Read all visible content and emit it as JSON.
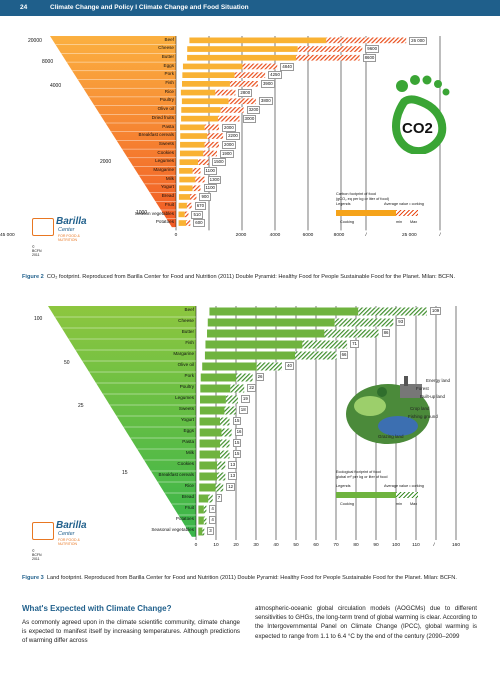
{
  "header": {
    "page_number": "24",
    "title": "Climate Change and Policy I Climate Change and Food Situation"
  },
  "figure2": {
    "caption_label": "Figure 2",
    "caption_text": "CO₂ footprint. Reproduced from Barilla Center for Food and Nutrition (2011) Double Pyramid: Healthy Food for People Sustainable Food for the Planet. Milan: BCFN.",
    "scale_marks": [
      "20000",
      "8000",
      "4000",
      "2000",
      "1000"
    ],
    "ticks": [
      "0",
      "2000",
      "4000",
      "6000",
      "8000",
      "/",
      "25 000",
      "/",
      "45 000"
    ],
    "legend": {
      "title": "Carbon footprint of food\n(gCO₂ eq per kg or liter of food)",
      "left": "Legends",
      "right": "Average value • corking",
      "a": "Cooking",
      "b": "min",
      "c": "Max"
    },
    "logo": {
      "name": "Barilla",
      "sub": "Center",
      "tag": "FOR FOOD & NUTRITION",
      "year": "© BCFN 2011"
    },
    "co2_label": "CO2",
    "color": "#f5921e"
  },
  "figure3": {
    "caption_label": "Figure 3",
    "caption_text": "Land footprint. Reproduced from Barilla Center for Food and Nutrition (2011) Double Pyramid: Healthy Food for People Sustainable Food for the Planet. Milan: BCFN.",
    "scale_marks": [
      "100",
      "50",
      "25",
      "15"
    ],
    "ticks": [
      "0",
      "10",
      "20",
      "30",
      "40",
      "50",
      "60",
      "70",
      "80",
      "90",
      "100",
      "110",
      "/",
      "160"
    ],
    "legend": {
      "title": "Ecological footprint of food\nglobal m² per kg or liter of food",
      "left": "Legends",
      "right": "Average value • corking",
      "a": "Cooking",
      "b": "min",
      "c": "Max"
    },
    "land_labels": [
      "Energy land",
      "Forest",
      "Built-up land",
      "Crop land",
      "Fishing ground",
      "Grazing land"
    ],
    "logo": {
      "name": "Barilla",
      "sub": "Center",
      "tag": "FOR FOOD & NUTRITION",
      "year": "© BCFN 2011"
    },
    "color": "#74b63b"
  },
  "chart_data": [
    {
      "type": "bar",
      "title": "CO₂ footprint",
      "categories": [
        "Beef",
        "Cheese",
        "Butter",
        "Eggs",
        "Pork",
        "Fish",
        "Rice",
        "Poultry",
        "Olive oil",
        "Dried fruits",
        "Pasta",
        "Breakfast cereals",
        "Sweets",
        "Cookies",
        "Legumes",
        "Margarine",
        "Milk",
        "Yogurt",
        "Bread",
        "Fruit",
        "Season vegetables",
        "Potatoes"
      ],
      "values": [
        26000,
        9600,
        8600,
        4840,
        4250,
        3900,
        2800,
        3800,
        3200,
        3000,
        2000,
        2200,
        2000,
        1900,
        1500,
        1100,
        1300,
        1100,
        900,
        670,
        510,
        600
      ],
      "value_labels": [
        "26 000",
        "9600",
        "8600",
        "4840",
        "4250",
        "3900",
        "2800",
        "3800",
        "3200",
        "3000",
        "2000",
        "2200",
        "2000",
        "1900",
        "1500",
        "1100",
        "1300",
        "1100",
        "900",
        "670",
        "510",
        "600"
      ]
    },
    {
      "type": "bar",
      "title": "Land footprint",
      "categories": [
        "Beef",
        "Cheese",
        "Butter",
        "Fish",
        "Margarine",
        "Olive oil",
        "Pork",
        "Poultry",
        "Legumes",
        "Sweets",
        "Yogurt",
        "Eggs",
        "Pasta",
        "Milk",
        "Cookies",
        "Breakfast cereals",
        "Rice",
        "Bread",
        "Fruit",
        "Potatoes",
        "Seasonal vegetables"
      ],
      "values": [
        109,
        93,
        86,
        71,
        66,
        40,
        26,
        22,
        19,
        18,
        15,
        16,
        15,
        15,
        13,
        13,
        12,
        7,
        4,
        4,
        3
      ],
      "value_labels": [
        "109",
        "93",
        "86",
        "71",
        "66",
        "40",
        "26",
        "22",
        "19",
        "18",
        "15",
        "16",
        "15",
        "15",
        "13",
        "13",
        "12",
        "7",
        "4",
        "4",
        "3"
      ]
    }
  ],
  "body": {
    "heading": "What's Expected with Climate Change?",
    "col1": "As commonly agreed upon in the climate scientific community, climate change is expected to manifest itself by increasing temperatures. Although predictions of warming differ across",
    "col2": "atmospheric-oceanic global circulation models (AOGCMs) due to different sensitivities to GHGs, the long-term trend of global warming is clear. According to the Intergovernmental Panel on Climate Change (IPCC), global warming is expected to range from 1.1 to 6.4 °C by the end of the century (2090–2099"
  }
}
